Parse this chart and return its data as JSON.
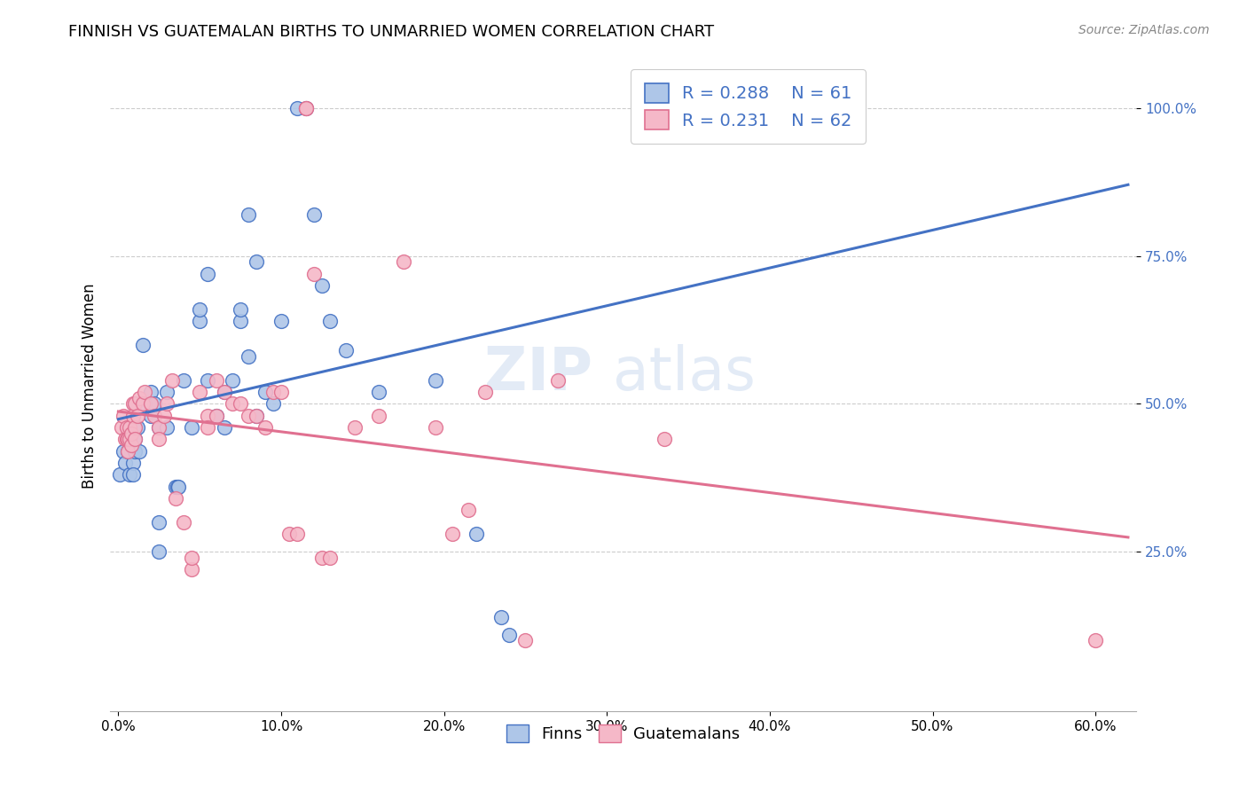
{
  "title": "FINNISH VS GUATEMALAN BIRTHS TO UNMARRIED WOMEN CORRELATION CHART",
  "source": "Source: ZipAtlas.com",
  "ylabel": "Births to Unmarried Women",
  "xlabel_ticks": [
    "0.0%",
    "10.0%",
    "20.0%",
    "30.0%",
    "40.0%",
    "50.0%",
    "60.0%"
  ],
  "xlabel_vals": [
    0.0,
    0.1,
    0.2,
    0.3,
    0.4,
    0.5,
    0.6
  ],
  "ylabel_ticks": [
    "100.0%",
    "75.0%",
    "50.0%",
    "25.0%"
  ],
  "ylabel_vals": [
    1.0,
    0.75,
    0.5,
    0.25
  ],
  "xlim": [
    -0.005,
    0.625
  ],
  "ylim": [
    -0.02,
    1.08
  ],
  "legend_r_finnish": "0.288",
  "legend_n_finnish": "61",
  "legend_r_guatemalan": "0.231",
  "legend_n_guatemalan": "62",
  "watermark_zip": "ZIP",
  "watermark_atlas": "atlas",
  "finnish_color": "#aec6e8",
  "guatemalan_color": "#f5b8c8",
  "finnish_line_color": "#4472c4",
  "guatemalan_line_color": "#e07090",
  "finnish_scatter": [
    [
      0.001,
      0.38
    ],
    [
      0.003,
      0.42
    ],
    [
      0.004,
      0.4
    ],
    [
      0.005,
      0.44
    ],
    [
      0.005,
      0.46
    ],
    [
      0.006,
      0.42
    ],
    [
      0.007,
      0.44
    ],
    [
      0.007,
      0.38
    ],
    [
      0.008,
      0.45
    ],
    [
      0.009,
      0.4
    ],
    [
      0.009,
      0.38
    ],
    [
      0.01,
      0.44
    ],
    [
      0.01,
      0.42
    ],
    [
      0.01,
      0.46
    ],
    [
      0.01,
      0.5
    ],
    [
      0.012,
      0.46
    ],
    [
      0.013,
      0.42
    ],
    [
      0.015,
      0.6
    ],
    [
      0.016,
      0.5
    ],
    [
      0.02,
      0.52
    ],
    [
      0.02,
      0.48
    ],
    [
      0.022,
      0.5
    ],
    [
      0.025,
      0.46
    ],
    [
      0.025,
      0.3
    ],
    [
      0.025,
      0.25
    ],
    [
      0.03,
      0.52
    ],
    [
      0.03,
      0.46
    ],
    [
      0.035,
      0.36
    ],
    [
      0.036,
      0.36
    ],
    [
      0.037,
      0.36
    ],
    [
      0.04,
      0.54
    ],
    [
      0.045,
      0.46
    ],
    [
      0.05,
      0.64
    ],
    [
      0.05,
      0.66
    ],
    [
      0.055,
      0.54
    ],
    [
      0.055,
      0.72
    ],
    [
      0.06,
      0.48
    ],
    [
      0.065,
      0.46
    ],
    [
      0.065,
      0.52
    ],
    [
      0.07,
      0.54
    ],
    [
      0.075,
      0.64
    ],
    [
      0.075,
      0.66
    ],
    [
      0.08,
      0.58
    ],
    [
      0.08,
      0.82
    ],
    [
      0.085,
      0.74
    ],
    [
      0.085,
      0.48
    ],
    [
      0.09,
      0.52
    ],
    [
      0.095,
      0.5
    ],
    [
      0.1,
      0.64
    ],
    [
      0.11,
      1.0
    ],
    [
      0.115,
      1.0
    ],
    [
      0.12,
      0.82
    ],
    [
      0.125,
      0.7
    ],
    [
      0.13,
      0.64
    ],
    [
      0.14,
      0.59
    ],
    [
      0.16,
      0.52
    ],
    [
      0.195,
      0.54
    ],
    [
      0.22,
      0.28
    ],
    [
      0.235,
      0.14
    ],
    [
      0.24,
      0.11
    ],
    [
      0.335,
      1.0
    ]
  ],
  "guatemalan_scatter": [
    [
      0.002,
      0.46
    ],
    [
      0.003,
      0.48
    ],
    [
      0.004,
      0.44
    ],
    [
      0.005,
      0.46
    ],
    [
      0.005,
      0.44
    ],
    [
      0.006,
      0.42
    ],
    [
      0.006,
      0.44
    ],
    [
      0.007,
      0.46
    ],
    [
      0.007,
      0.44
    ],
    [
      0.008,
      0.43
    ],
    [
      0.008,
      0.45
    ],
    [
      0.009,
      0.5
    ],
    [
      0.009,
      0.48
    ],
    [
      0.01,
      0.46
    ],
    [
      0.01,
      0.44
    ],
    [
      0.01,
      0.5
    ],
    [
      0.012,
      0.48
    ],
    [
      0.013,
      0.51
    ],
    [
      0.015,
      0.5
    ],
    [
      0.016,
      0.52
    ],
    [
      0.02,
      0.5
    ],
    [
      0.022,
      0.48
    ],
    [
      0.025,
      0.46
    ],
    [
      0.025,
      0.44
    ],
    [
      0.028,
      0.48
    ],
    [
      0.03,
      0.5
    ],
    [
      0.033,
      0.54
    ],
    [
      0.035,
      0.34
    ],
    [
      0.04,
      0.3
    ],
    [
      0.045,
      0.22
    ],
    [
      0.045,
      0.24
    ],
    [
      0.05,
      0.52
    ],
    [
      0.055,
      0.48
    ],
    [
      0.055,
      0.46
    ],
    [
      0.06,
      0.54
    ],
    [
      0.06,
      0.48
    ],
    [
      0.065,
      0.52
    ],
    [
      0.07,
      0.5
    ],
    [
      0.075,
      0.5
    ],
    [
      0.08,
      0.48
    ],
    [
      0.085,
      0.48
    ],
    [
      0.09,
      0.46
    ],
    [
      0.095,
      0.52
    ],
    [
      0.1,
      0.52
    ],
    [
      0.105,
      0.28
    ],
    [
      0.11,
      0.28
    ],
    [
      0.115,
      1.0
    ],
    [
      0.115,
      1.0
    ],
    [
      0.12,
      0.72
    ],
    [
      0.125,
      0.24
    ],
    [
      0.13,
      0.24
    ],
    [
      0.145,
      0.46
    ],
    [
      0.16,
      0.48
    ],
    [
      0.175,
      0.74
    ],
    [
      0.195,
      0.46
    ],
    [
      0.205,
      0.28
    ],
    [
      0.215,
      0.32
    ],
    [
      0.225,
      0.52
    ],
    [
      0.25,
      0.1
    ],
    [
      0.27,
      0.54
    ],
    [
      0.335,
      0.44
    ],
    [
      0.6,
      0.1
    ]
  ],
  "title_fontsize": 13,
  "source_fontsize": 10,
  "tick_fontsize": 11,
  "label_fontsize": 12
}
